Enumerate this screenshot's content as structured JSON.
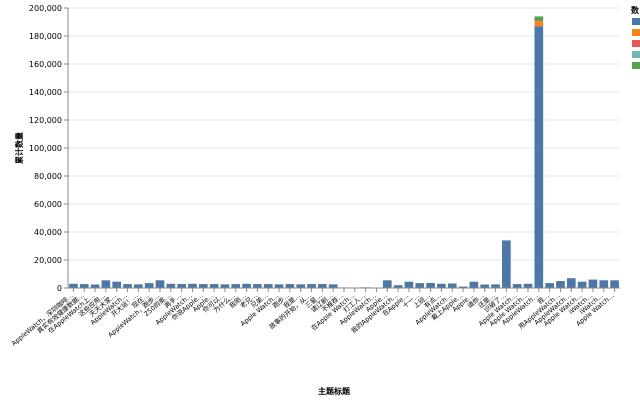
{
  "chart_data": {
    "type": "bar",
    "stacked": true,
    "xlabel": "主题标题",
    "ylabel": "累计数量",
    "ylim": [
      0,
      200000
    ],
    "yticks": [
      0,
      20000,
      40000,
      60000,
      80000,
      100000,
      120000,
      140000,
      160000,
      180000,
      200000
    ],
    "grid": true,
    "legend": {
      "title": "数",
      "position": "right"
    },
    "colors": [
      "#4c78a8",
      "#f58518",
      "#e45756",
      "#72b7b2",
      "#54a24b"
    ],
    "categories": [
      "AppleWatch，深圳咖啡…",
      "真实有效健康数据…",
      "在AppleWatch上…",
      "这些应用…",
      "天天大家…",
      "AppleWatch…",
      "开大运！…",
      "现在…",
      "AppleWatch，跑步…",
      "250的奥…",
      "再手…",
      "AppleWatch…",
      "你说Apple…",
      "Apple…",
      "你可以…",
      "为什么…",
      "我刚…",
      "老兄…",
      "兄弟…",
      "Apple Watch…",
      "跑步…",
      "我是…",
      "故事的开始，从…",
      "三星…",
      "请辽剧…",
      "不推荐…",
      "在Apple Watch…",
      "打工人…",
      "AppleWatch…",
      "Apple…",
      "我的AppleWatch…",
      "在Apple…",
      "十一…",
      "上班…",
      "有点…",
      "AppleWatch…",
      "戴上Apple…",
      "Apple…",
      "请你…",
      "还是…",
      "识破了…",
      "Apple Watch…",
      "Apple Watch…",
      "AppleWatch…",
      "我…",
      "用AppleWatch…",
      "AppleWatch…",
      "Apple Watch…",
      "iWatch…",
      "iWatch…",
      "Apple Watch…"
    ],
    "series": [
      {
        "values": [
          3000,
          2800,
          2500,
          5500,
          4500,
          2800,
          2600,
          3500,
          5500,
          3000,
          2800,
          3000,
          2800,
          2800,
          2600,
          2800,
          3000,
          2800,
          2800,
          2600,
          2800,
          2600,
          2800,
          2800,
          2600,
          400,
          300,
          500,
          300,
          5500,
          2000,
          4500,
          3500,
          3600,
          3000,
          3200,
          1000,
          4500,
          2500,
          2600,
          34000,
          2800,
          3000,
          187000,
          3500,
          5000,
          7000,
          4500,
          6000,
          5500,
          5500
        ]
      },
      {
        "values": [
          0,
          0,
          0,
          0,
          0,
          0,
          0,
          0,
          0,
          0,
          0,
          0,
          0,
          0,
          0,
          0,
          0,
          0,
          0,
          0,
          0,
          0,
          0,
          0,
          0,
          0,
          0,
          0,
          0,
          0,
          0,
          0,
          0,
          0,
          0,
          0,
          0,
          0,
          0,
          0,
          0,
          0,
          0,
          3500,
          0,
          0,
          0,
          0,
          0,
          0,
          0
        ]
      },
      {
        "values": [
          0,
          0,
          0,
          0,
          0,
          0,
          0,
          0,
          0,
          0,
          0,
          0,
          0,
          0,
          0,
          0,
          0,
          0,
          0,
          0,
          0,
          0,
          0,
          0,
          0,
          0,
          0,
          0,
          0,
          0,
          0,
          0,
          0,
          0,
          0,
          0,
          0,
          0,
          0,
          0,
          0,
          0,
          0,
          500,
          0,
          0,
          0,
          0,
          0,
          0,
          0
        ]
      },
      {
        "values": [
          0,
          0,
          0,
          0,
          0,
          0,
          0,
          0,
          0,
          0,
          0,
          0,
          0,
          0,
          0,
          0,
          0,
          0,
          0,
          0,
          0,
          0,
          0,
          0,
          0,
          0,
          0,
          0,
          0,
          0,
          0,
          0,
          0,
          0,
          0,
          0,
          0,
          0,
          0,
          0,
          0,
          0,
          0,
          0,
          0,
          0,
          0,
          0,
          0,
          0,
          0
        ]
      },
      {
        "values": [
          0,
          0,
          0,
          0,
          0,
          0,
          0,
          0,
          0,
          0,
          0,
          0,
          0,
          0,
          0,
          0,
          0,
          0,
          0,
          0,
          0,
          0,
          0,
          0,
          0,
          0,
          0,
          0,
          0,
          0,
          0,
          0,
          0,
          0,
          0,
          0,
          0,
          0,
          0,
          0,
          0,
          0,
          0,
          3000,
          0,
          0,
          0,
          0,
          0,
          0,
          0
        ]
      }
    ]
  }
}
